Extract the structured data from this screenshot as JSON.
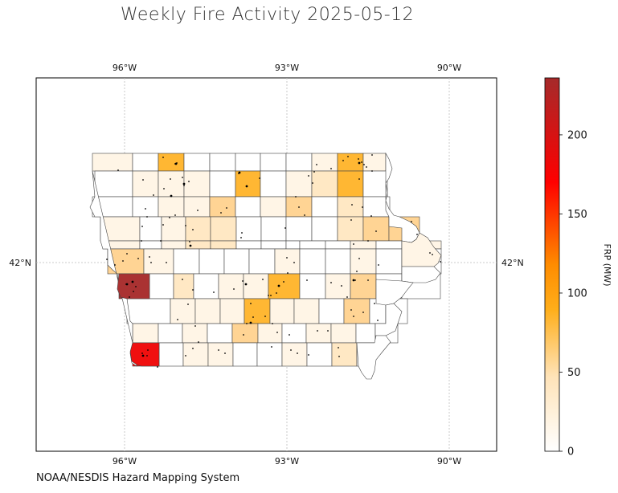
{
  "title": "Weekly Fire Activity 2025-05-12",
  "source": "NOAA/NESDIS Hazard Mapping System",
  "map": {
    "lon_labels_top": [
      "96°W",
      "93°W",
      "90°W"
    ],
    "lon_labels_bottom": [
      "96°W",
      "93°W",
      "90°W"
    ],
    "lat_label_left": "42°N",
    "lat_label_right": "42°N",
    "region": "Iowa counties"
  },
  "colorbar": {
    "label": "FRP (MW)",
    "ticks": [
      "0",
      "50",
      "100",
      "150",
      "200"
    ],
    "range": [
      0,
      236
    ],
    "colors": [
      "#ffffff",
      "#ffe3b8",
      "#ffb833",
      "#ff9f00",
      "#ff0000",
      "#a52a2a"
    ]
  },
  "legend_colors": {
    "white": "#ffffff",
    "pale": "#fff5e6",
    "light": "#ffe8c4",
    "mid": "#ffd494",
    "orange": "#ffb733",
    "red": "#f01010",
    "darkred": "#aa3232"
  }
}
